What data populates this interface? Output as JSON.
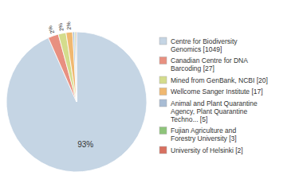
{
  "chart_data": {
    "type": "pie",
    "categories": [
      "Centre for Biodiversity\nGenomics [1049]",
      "Canadian Centre for DNA\nBarcoding [27]",
      "Mined from GenBank, NCBI [20]",
      "Wellcome Sanger Institute [17]",
      "Animal and Plant Quarantine\nAgency, Plant Quarantine\nTechno... [5]",
      "Fujian Agriculture and\nForestry University [3]",
      "University of Helsinki [2]"
    ],
    "values": [
      1049,
      27,
      20,
      17,
      5,
      3,
      2
    ],
    "colors": [
      "#c5d5e4",
      "#e89080",
      "#d4dc8c",
      "#f0b870",
      "#a8bcd4",
      "#8ec47a",
      "#d87060"
    ],
    "data_labels": true,
    "value_labels": [
      "93%",
      "2%",
      "2%",
      "2%",
      null,
      null,
      null
    ],
    "legend": "right"
  }
}
